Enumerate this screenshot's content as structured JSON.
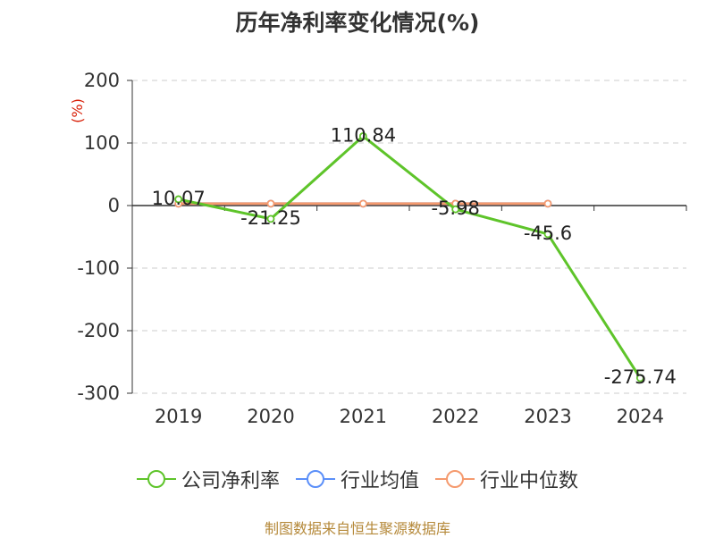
{
  "title": "历年净利率变化情况(%)",
  "source": "制图数据来自恒生聚源数据库",
  "colors": {
    "company": "#5ec42a",
    "industry_avg": "#5b8ff9",
    "industry_median": "#f59a6e",
    "unit_label": "#d81e06",
    "source": "#b5893a"
  },
  "legend": [
    {
      "label": "公司净利率",
      "color": "#5ec42a"
    },
    {
      "label": "行业均值",
      "color": "#5b8ff9"
    },
    {
      "label": "行业中位数",
      "color": "#f59a6e"
    }
  ],
  "chart_data": {
    "type": "line",
    "title": "历年净利率变化情况(%)",
    "ylabel": "(%)",
    "categories": [
      "2019",
      "2020",
      "2021",
      "2022",
      "2023",
      "2024"
    ],
    "ylim": [
      -300,
      200
    ],
    "yticks": [
      200,
      100,
      0,
      -100,
      -200,
      -300
    ],
    "grid": true,
    "legend_position": "bottom",
    "series": [
      {
        "name": "公司净利率",
        "values": [
          10.07,
          -21.25,
          110.84,
          -5.98,
          -45.6,
          -275.74
        ],
        "labels": [
          "10.07",
          "-21.25",
          "110.84",
          "-5.98",
          "-45.6",
          "-275.74"
        ]
      },
      {
        "name": "行业均值",
        "values": [
          3,
          3,
          3,
          3,
          3,
          null
        ]
      },
      {
        "name": "行业中位数",
        "values": [
          3,
          3,
          3,
          3,
          3,
          null
        ]
      }
    ]
  }
}
